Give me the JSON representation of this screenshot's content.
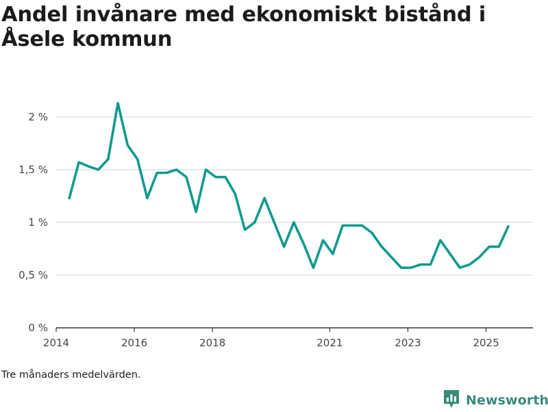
{
  "chart_data": {
    "type": "line",
    "title": "Andel invånare med ekonomiskt bistånd i Åsele kommun",
    "xlabel": "",
    "ylabel": "",
    "xlim": [
      2014.0,
      2026.2
    ],
    "ylim": [
      0,
      2.2
    ],
    "y_ticks": [
      {
        "value": 0,
        "label": "0 %"
      },
      {
        "value": 0.5,
        "label": "0,5 %"
      },
      {
        "value": 1,
        "label": "1 %"
      },
      {
        "value": 1.5,
        "label": "1,5 %"
      },
      {
        "value": 2,
        "label": "2 %"
      }
    ],
    "x_ticks": [
      {
        "value": 2014,
        "label": "2014"
      },
      {
        "value": 2016,
        "label": "2016"
      },
      {
        "value": 2018,
        "label": "2018"
      },
      {
        "value": 2021,
        "label": "2021"
      },
      {
        "value": 2023,
        "label": "2023"
      },
      {
        "value": 2025,
        "label": "2025"
      }
    ],
    "grid": true,
    "series": [
      {
        "name": "Åsele kommun",
        "color": "#0e9a8e",
        "x": [
          2014.33,
          2014.58,
          2014.83,
          2015.08,
          2015.33,
          2015.58,
          2015.83,
          2016.08,
          2016.33,
          2016.58,
          2016.83,
          2017.08,
          2017.33,
          2017.58,
          2017.83,
          2018.08,
          2018.33,
          2018.58,
          2018.83,
          2019.08,
          2019.33,
          2019.58,
          2019.83,
          2020.08,
          2020.33,
          2020.58,
          2020.83,
          2021.08,
          2021.33,
          2021.58,
          2021.83,
          2022.08,
          2022.33,
          2022.58,
          2022.83,
          2023.08,
          2023.33,
          2023.58,
          2023.83,
          2024.08,
          2024.33,
          2024.58,
          2024.83,
          2025.08,
          2025.33,
          2025.58
        ],
        "values": [
          1.22,
          1.57,
          1.53,
          1.5,
          1.6,
          2.13,
          1.73,
          1.6,
          1.23,
          1.47,
          1.47,
          1.5,
          1.43,
          1.1,
          1.5,
          1.43,
          1.43,
          1.27,
          0.93,
          1.0,
          1.23,
          1.0,
          0.77,
          1.0,
          0.8,
          0.57,
          0.83,
          0.7,
          0.97,
          0.97,
          0.97,
          0.9,
          0.77,
          0.67,
          0.57,
          0.57,
          0.6,
          0.6,
          0.83,
          0.7,
          0.57,
          0.6,
          0.67,
          0.77,
          0.77,
          0.97
        ]
      }
    ]
  },
  "note": "Tre månaders medelvärden.",
  "brand": {
    "name": "Newsworthy",
    "color": "#3a8a7a",
    "logo_icon": "bar-chart-flag-icon"
  },
  "colors": {
    "line": "#0e9a8e",
    "grid": "#d9d9d9",
    "axis": "#333333"
  }
}
